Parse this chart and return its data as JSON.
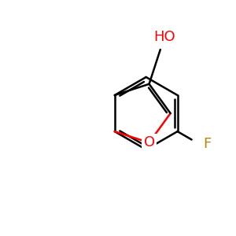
{
  "background_color": "#ffffff",
  "bond_color": "#000000",
  "bond_width": 1.8,
  "O_color": "#ff0000",
  "F_color": "#b8860b",
  "label_HO": "HO",
  "label_O": "O",
  "label_F": "F",
  "label_fontsize": 13,
  "figsize": [
    3.0,
    3.0
  ],
  "dpi": 100,
  "xlim": [
    0,
    10
  ],
  "ylim": [
    0,
    10
  ]
}
